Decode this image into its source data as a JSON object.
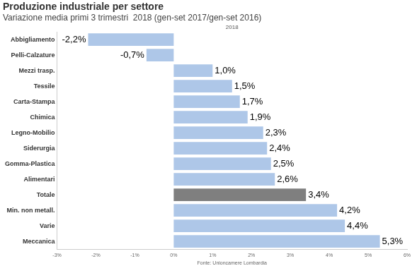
{
  "chart_data": {
    "type": "bar",
    "orientation": "horizontal",
    "title": "Produzione industriale per settore",
    "subtitle": "Variazione media primi 3 trimestri  2018 (gen-set 2017/gen-set 2016)",
    "header": "2018",
    "source": "Fonte: Unioncamere Lombardia",
    "categories": [
      "Abbigliamento",
      "Pelli-Calzature",
      "Mezzi trasp.",
      "Tessile",
      "Carta-Stampa",
      "Chimica",
      "Legno-Mobilio",
      "Siderurgia",
      "Gomma-Plastica",
      "Alimentari",
      "Totale",
      "Min. non metall.",
      "Varie",
      "Meccanica"
    ],
    "values": [
      -2.2,
      -0.7,
      1.0,
      1.5,
      1.7,
      1.9,
      2.3,
      2.4,
      2.5,
      2.6,
      3.4,
      4.2,
      4.4,
      5.3
    ],
    "value_labels": [
      "-2,2%",
      "-0,7%",
      "1,0%",
      "1,5%",
      "1,7%",
      "1,9%",
      "2,3%",
      "2,4%",
      "2,5%",
      "2,6%",
      "3,4%",
      "4,2%",
      "4,4%",
      "5,3%"
    ],
    "colors": [
      "#aec7e8",
      "#aec7e8",
      "#aec7e8",
      "#aec7e8",
      "#aec7e8",
      "#aec7e8",
      "#aec7e8",
      "#aec7e8",
      "#aec7e8",
      "#aec7e8",
      "#7f7f7f",
      "#aec7e8",
      "#aec7e8",
      "#aec7e8"
    ],
    "xlim": [
      -3,
      6
    ],
    "xticks": [
      {
        "value": -3,
        "label": "-3%"
      },
      {
        "value": -2,
        "label": "-2%"
      },
      {
        "value": -1,
        "label": "-1%"
      },
      {
        "value": 0,
        "label": "0%"
      },
      {
        "value": 1,
        "label": "1%"
      },
      {
        "value": 2,
        "label": "2%"
      },
      {
        "value": 3,
        "label": "3%"
      },
      {
        "value": 4,
        "label": "4%"
      },
      {
        "value": 5,
        "label": "5%"
      },
      {
        "value": 6,
        "label": "6%"
      }
    ],
    "grid": false,
    "data_labels": true,
    "legend": "none"
  }
}
